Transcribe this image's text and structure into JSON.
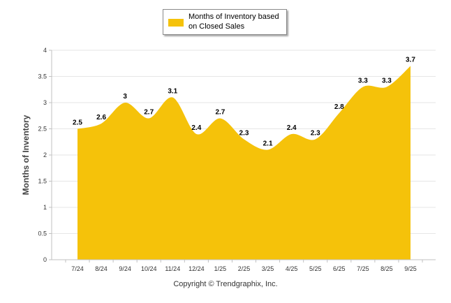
{
  "chart_data": {
    "type": "area",
    "title": "",
    "xlabel": "",
    "ylabel": "Months of Inventory",
    "ylim": [
      0,
      4
    ],
    "yticks": [
      "0",
      "0.5",
      "1",
      "1.5",
      "2",
      "2.5",
      "3",
      "3.5",
      "4"
    ],
    "grid": true,
    "legend_position": "top-center",
    "categories": [
      "7/24",
      "8/24",
      "9/24",
      "10/24",
      "11/24",
      "12/24",
      "1/25",
      "2/25",
      "3/25",
      "4/25",
      "5/25",
      "6/25",
      "7/25",
      "8/25",
      "9/25"
    ],
    "series": [
      {
        "name": "Months of Inventory based on Closed Sales",
        "values": [
          2.5,
          2.6,
          3,
          2.7,
          3.1,
          2.4,
          2.7,
          2.3,
          2.1,
          2.4,
          2.3,
          2.8,
          3.3,
          3.3,
          3.7
        ],
        "labels": [
          "2.5",
          "2.6",
          "3",
          "2.7",
          "3.1",
          "2.4",
          "2.7",
          "2.3",
          "2.1",
          "2.4",
          "2.3",
          "2.8",
          "3.3",
          "3.3",
          "3.7"
        ],
        "color": "#F5C20A"
      }
    ]
  },
  "footer": {
    "copyright": "Copyright © Trendgraphix, Inc."
  },
  "colors": {
    "grid": "#E6E6E6",
    "axis": "#C0C0C0",
    "fill": "#F5C20A"
  }
}
